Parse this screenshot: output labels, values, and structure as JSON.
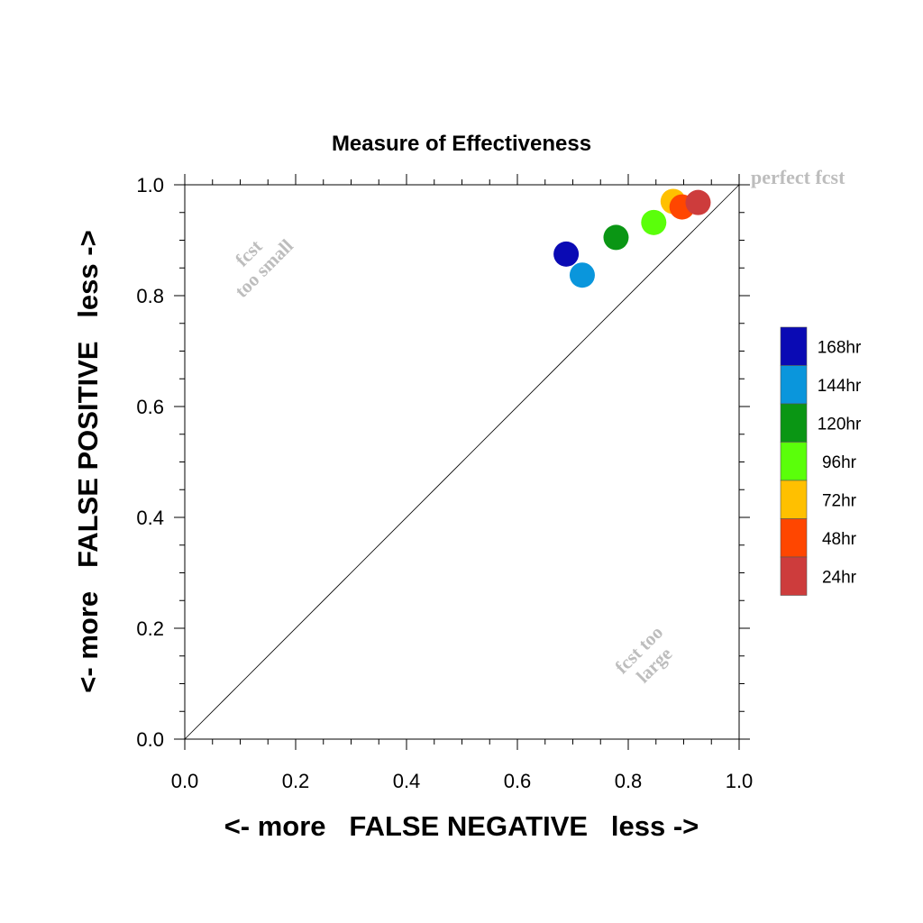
{
  "chart_data": {
    "type": "scatter",
    "title": "Measure of Effectiveness",
    "xlabel": "<- more   FALSE NEGATIVE   less ->",
    "ylabel": "<- more   FALSE POSITIVE   less ->",
    "xlim": [
      0.0,
      1.0
    ],
    "ylim": [
      0.0,
      1.0
    ],
    "xticks": [
      "0.0",
      "0.2",
      "0.4",
      "0.6",
      "0.8",
      "1.0"
    ],
    "yticks": [
      "0.0",
      "0.2",
      "0.4",
      "0.6",
      "0.8",
      "1.0"
    ],
    "grid": false,
    "legend_position": "right",
    "diagonal_line": true,
    "annotations": {
      "perfect": "perfect fcst",
      "too_small_line1": "fcst",
      "too_small_line2": "too small",
      "too_large_line1": "fcst too",
      "too_large_line2": "large"
    },
    "series": [
      {
        "name": "168hr",
        "color": "#0a0ab4",
        "x": 0.688,
        "y": 0.875
      },
      {
        "name": "144hr",
        "color": "#0a96dc",
        "x": 0.717,
        "y": 0.837
      },
      {
        "name": "120hr",
        "color": "#0a9614",
        "x": 0.778,
        "y": 0.905
      },
      {
        "name": "96hr",
        "color": "#5aff0a",
        "x": 0.846,
        "y": 0.932
      },
      {
        "name": "72hr",
        "color": "#ffc000",
        "x": 0.881,
        "y": 0.97
      },
      {
        "name": "48hr",
        "color": "#ff4600",
        "x": 0.897,
        "y": 0.96
      },
      {
        "name": "24hr",
        "color": "#cd3c3c",
        "x": 0.926,
        "y": 0.968
      }
    ]
  }
}
